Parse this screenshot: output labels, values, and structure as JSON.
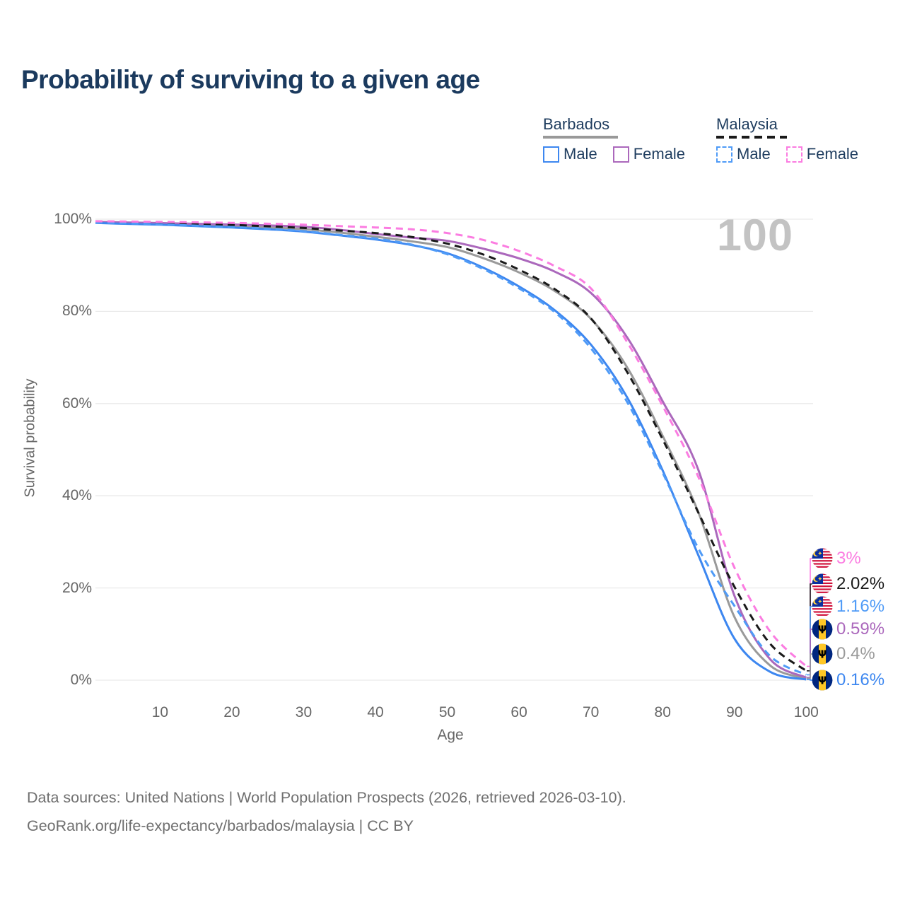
{
  "title": "Probability of surviving to a given age",
  "watermark": "100",
  "legend": {
    "groups": [
      {
        "label": "Barbados",
        "line_style": "solid",
        "line_color": "#999999",
        "items": [
          {
            "label": "Male",
            "color": "#3d87f0",
            "dashed": false
          },
          {
            "label": "Female",
            "color": "#ab68bc",
            "dashed": false
          }
        ]
      },
      {
        "label": "Malaysia",
        "line_style": "dashed",
        "line_color": "#1a1a1a",
        "items": [
          {
            "label": "Male",
            "color": "#4f9bf7",
            "dashed": true
          },
          {
            "label": "Female",
            "color": "#fb7ce1",
            "dashed": true
          }
        ]
      }
    ]
  },
  "chart_data": {
    "type": "line",
    "title": "Probability of surviving to a given age",
    "xlabel": "Age",
    "ylabel": "Survival probability",
    "xlim": [
      1,
      100
    ],
    "ylim": [
      0,
      100
    ],
    "grid": "horizontal-only",
    "legend_position": "top-right",
    "x_ticks": [
      10,
      20,
      30,
      40,
      50,
      60,
      70,
      80,
      90,
      100
    ],
    "y_ticks": [
      {
        "value": 0,
        "label": "0%"
      },
      {
        "value": 20,
        "label": "20%"
      },
      {
        "value": 40,
        "label": "40%"
      },
      {
        "value": 60,
        "label": "60%"
      },
      {
        "value": 80,
        "label": "80%"
      },
      {
        "value": 100,
        "label": "100%"
      }
    ],
    "x": [
      1,
      5,
      10,
      15,
      20,
      25,
      30,
      35,
      40,
      45,
      50,
      55,
      60,
      65,
      70,
      75,
      80,
      85,
      90,
      95,
      100
    ],
    "series": [
      {
        "name": "Barbados Total",
        "country": "Barbados",
        "sex": "total",
        "color": "#9a9a9a",
        "dashed": false,
        "values": [
          99.3,
          99.15,
          98.98,
          98.75,
          98.53,
          98.23,
          97.83,
          97.1,
          96.2,
          95.2,
          93.95,
          91.55,
          88.45,
          84.4,
          78.4,
          68.0,
          53.0,
          36.3,
          13.7,
          3.15,
          0.4
        ],
        "end_label": "0.4%"
      },
      {
        "name": "Barbados Female",
        "country": "Barbados",
        "sex": "female",
        "color": "#ab68bc",
        "dashed": false,
        "values": [
          99.4,
          99.3,
          99.15,
          99.0,
          98.85,
          98.65,
          98.35,
          97.7,
          96.8,
          96.0,
          95.3,
          93.6,
          91.5,
          88.6,
          84.0,
          74.5,
          60.5,
          45.5,
          18.3,
          4.5,
          0.59
        ],
        "end_label": "0.59%"
      },
      {
        "name": "Barbados Male",
        "country": "Barbados",
        "sex": "male",
        "color": "#3d87f0",
        "dashed": false,
        "values": [
          99.2,
          99.0,
          98.8,
          98.5,
          98.2,
          97.8,
          97.3,
          96.5,
          95.6,
          94.4,
          92.6,
          89.5,
          85.4,
          80.2,
          72.8,
          61.5,
          45.5,
          27.0,
          9.0,
          1.8,
          0.16
        ],
        "end_label": "0.16%"
      },
      {
        "name": "Malaysia Total",
        "country": "Malaysia",
        "sex": "total",
        "color": "#1a1a1a",
        "dashed": true,
        "values": [
          99.42,
          99.3,
          99.16,
          98.96,
          98.75,
          98.46,
          98.1,
          97.55,
          97.0,
          96.15,
          94.7,
          92.35,
          89.05,
          84.8,
          78.5,
          67.0,
          52.25,
          36.25,
          20.25,
          7.85,
          2.02
        ],
        "end_label": "2.02%"
      },
      {
        "name": "Malaysia Male",
        "country": "Malaysia",
        "sex": "male",
        "color": "#4f9bf7",
        "dashed": true,
        "values": [
          99.3,
          99.1,
          98.9,
          98.6,
          98.3,
          97.9,
          97.4,
          96.6,
          95.8,
          94.5,
          92.4,
          89.2,
          85.0,
          79.8,
          72.0,
          60.5,
          45.0,
          28.5,
          16.1,
          5.2,
          1.16
        ],
        "end_label": "1.16%"
      },
      {
        "name": "Malaysia Female",
        "country": "Malaysia",
        "sex": "female",
        "color": "#fb7ce1",
        "dashed": true,
        "values": [
          99.55,
          99.5,
          99.42,
          99.32,
          99.2,
          99.02,
          98.8,
          98.5,
          98.2,
          97.8,
          97.0,
          95.5,
          93.1,
          89.8,
          85.0,
          73.5,
          59.5,
          44.0,
          24.4,
          10.5,
          3.0
        ],
        "end_label": "3%"
      }
    ],
    "end_labels": [
      {
        "text": "3%",
        "flag": "malaysia",
        "color": "#fb7ce1",
        "series": "Malaysia Female"
      },
      {
        "text": "2.02%",
        "flag": "malaysia",
        "color": "#1a1a1a",
        "series": "Malaysia Total"
      },
      {
        "text": "1.16%",
        "flag": "malaysia",
        "color": "#4f9bf7",
        "series": "Malaysia Male"
      },
      {
        "text": "0.59%",
        "flag": "barbados",
        "color": "#ab68bc",
        "series": "Barbados Female"
      },
      {
        "text": "0.4%",
        "flag": "barbados",
        "color": "#9a9a9a",
        "series": "Barbados Total"
      },
      {
        "text": "0.16%",
        "flag": "barbados",
        "color": "#3d87f0",
        "series": "Barbados Male"
      }
    ]
  },
  "footer": {
    "line1": "Data sources: United Nations | World Population Prospects (2026, retrieved 2026-03-10).",
    "line2": "GeoRank.org/life-expectancy/barbados/malaysia | CC BY"
  }
}
